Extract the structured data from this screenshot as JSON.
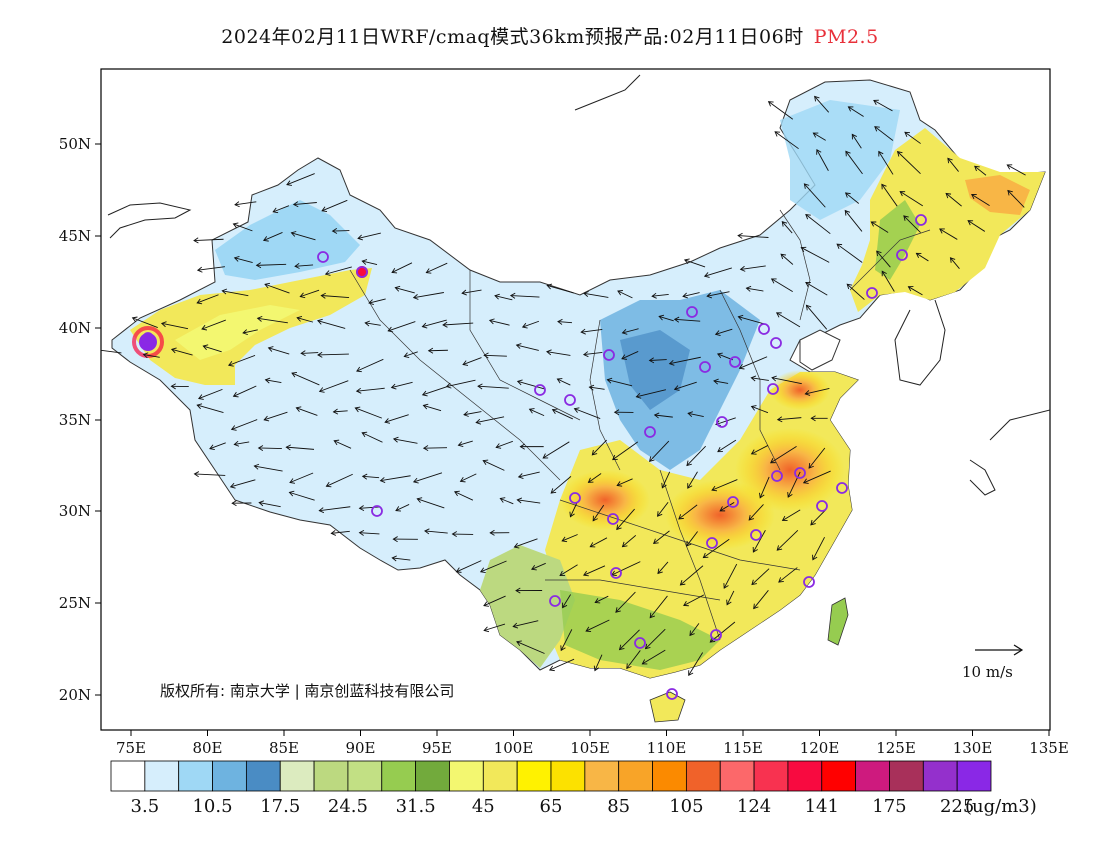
{
  "title": {
    "main": "2024年02月11日WRF/cmaq模式36km预报产品:02月11日06时",
    "variable": "PM2.5",
    "variable_color": "#e8303a"
  },
  "map": {
    "lat_labels": [
      "50N",
      "45N",
      "40N",
      "35N",
      "30N",
      "25N",
      "20N"
    ],
    "lon_labels": [
      "75E",
      "80E",
      "85E",
      "90E",
      "95E",
      "100E",
      "105E",
      "110E",
      "115E",
      "120E",
      "125E",
      "130E",
      "135E"
    ],
    "wind_reference": "10 m/s",
    "copyright": "版权所有: 南京大学 | 南京创蓝科技有限公司",
    "site_marker_color": "#8a2be2"
  },
  "colorbar": {
    "colors": [
      "#ffffff",
      "#d6eefc",
      "#9fd8f5",
      "#6eb3e0",
      "#4a8cc4",
      "#dcebbf",
      "#bcd980",
      "#c2e084",
      "#96cc50",
      "#72aa3c",
      "#f3f770",
      "#f2e85a",
      "#fff200",
      "#fce100",
      "#f8b646",
      "#f8a428",
      "#fb8a00",
      "#f0622a",
      "#fc686a",
      "#f83250",
      "#f80a40",
      "#ff0000",
      "#ce1a7e",
      "#a8305a",
      "#9430cc",
      "#8a28e6"
    ],
    "tick_labels": [
      "3.5",
      "10.5",
      "17.5",
      "24.5",
      "31.5",
      "45",
      "65",
      "85",
      "105",
      "124",
      "141",
      "175",
      "225"
    ],
    "units": "(ug/m3)"
  }
}
